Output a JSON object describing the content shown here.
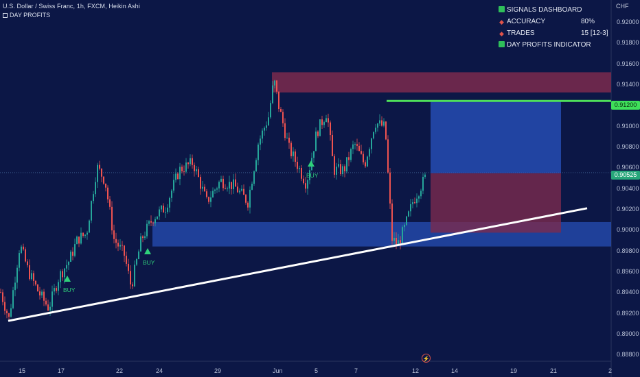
{
  "header": {
    "title": "U.S. Dollar / Swiss Franc, 1h, FXCM, Heikin Ashi",
    "subtitle": "DAY PROFITS"
  },
  "price_axis": {
    "currency": "CHF",
    "ticks": [
      "0.92000",
      "0.91800",
      "0.91600",
      "0.91400",
      "0.91000",
      "0.90800",
      "0.90600",
      "0.90400",
      "0.90200",
      "0.90000",
      "0.89800",
      "0.89600",
      "0.89400",
      "0.89200",
      "0.89000",
      "0.88800"
    ],
    "current_price": "0.90525",
    "target_price": "0.91200"
  },
  "time_axis": {
    "ticks": [
      "15",
      "17",
      "22",
      "24",
      "29",
      "Jun",
      "5",
      "7",
      "12",
      "14",
      "19",
      "21",
      "2"
    ]
  },
  "dashboard": {
    "title": "SIGNALS DASHBOARD",
    "accuracy_label": "ACCURACY",
    "accuracy_value": "80%",
    "trades_label": "TRADES",
    "trades_value": "15 [12-3]",
    "indicator_label": "DAY PROFITS INDICATOR"
  },
  "signals": [
    {
      "label": "BUY"
    },
    {
      "label": "BUY"
    },
    {
      "label": "BUY"
    }
  ],
  "colors": {
    "background": "#0c1746",
    "bull_candle": "#26a69a",
    "bear_candle": "#ef5350",
    "support_zone": "#2a56c6",
    "resistance_zone": "#7b2a4e",
    "target_line": "#4ee05a",
    "trendline": "#ffffff",
    "buy_signal": "#2fd07a"
  },
  "chart_data": {
    "type": "candlestick",
    "ylim": [
      0.8875,
      0.9215
    ],
    "series": [
      {
        "x": 0,
        "y": 0.894
      },
      {
        "x": 12,
        "y": 0.8915
      },
      {
        "x": 28,
        "y": 0.8985
      },
      {
        "x": 40,
        "y": 0.896
      },
      {
        "x": 55,
        "y": 0.894
      },
      {
        "x": 70,
        "y": 0.8925
      },
      {
        "x": 85,
        "y": 0.8955
      },
      {
        "x": 100,
        "y": 0.897
      },
      {
        "x": 112,
        "y": 0.899
      },
      {
        "x": 125,
        "y": 0.8995
      },
      {
        "x": 140,
        "y": 0.9058
      },
      {
        "x": 152,
        "y": 0.9045
      },
      {
        "x": 165,
        "y": 0.899
      },
      {
        "x": 180,
        "y": 0.8975
      },
      {
        "x": 190,
        "y": 0.8945
      },
      {
        "x": 205,
        "y": 0.899
      },
      {
        "x": 222,
        "y": 0.901
      },
      {
        "x": 240,
        "y": 0.902
      },
      {
        "x": 260,
        "y": 0.9055
      },
      {
        "x": 280,
        "y": 0.9062
      },
      {
        "x": 300,
        "y": 0.9025
      },
      {
        "x": 320,
        "y": 0.9045
      },
      {
        "x": 340,
        "y": 0.904
      },
      {
        "x": 360,
        "y": 0.9025
      },
      {
        "x": 375,
        "y": 0.908
      },
      {
        "x": 390,
        "y": 0.9105
      },
      {
        "x": 398,
        "y": 0.914
      },
      {
        "x": 405,
        "y": 0.9115
      },
      {
        "x": 420,
        "y": 0.9075
      },
      {
        "x": 432,
        "y": 0.906
      },
      {
        "x": 445,
        "y": 0.9042
      },
      {
        "x": 460,
        "y": 0.909
      },
      {
        "x": 475,
        "y": 0.911
      },
      {
        "x": 485,
        "y": 0.9055
      },
      {
        "x": 500,
        "y": 0.9055
      },
      {
        "x": 515,
        "y": 0.908
      },
      {
        "x": 530,
        "y": 0.906
      },
      {
        "x": 545,
        "y": 0.91
      },
      {
        "x": 560,
        "y": 0.9095
      },
      {
        "x": 565,
        "y": 0.904
      },
      {
        "x": 570,
        "y": 0.899
      },
      {
        "x": 578,
        "y": 0.8985
      },
      {
        "x": 588,
        "y": 0.9
      },
      {
        "x": 600,
        "y": 0.9025
      },
      {
        "x": 612,
        "y": 0.904
      },
      {
        "x": 620,
        "y": 0.905
      }
    ],
    "zones": [
      {
        "name": "resistance",
        "y0": 0.9128,
        "y1": 0.9147
      },
      {
        "name": "support",
        "y0": 0.8983,
        "y1": 0.9006
      },
      {
        "name": "target",
        "y0": 0.9052,
        "y1": 0.912
      },
      {
        "name": "stop",
        "y0": 0.8996,
        "y1": 0.9052
      }
    ],
    "trendline": [
      {
        "y": 0.8913
      },
      {
        "y": 0.9019
      }
    ],
    "target_level": 0.912
  }
}
